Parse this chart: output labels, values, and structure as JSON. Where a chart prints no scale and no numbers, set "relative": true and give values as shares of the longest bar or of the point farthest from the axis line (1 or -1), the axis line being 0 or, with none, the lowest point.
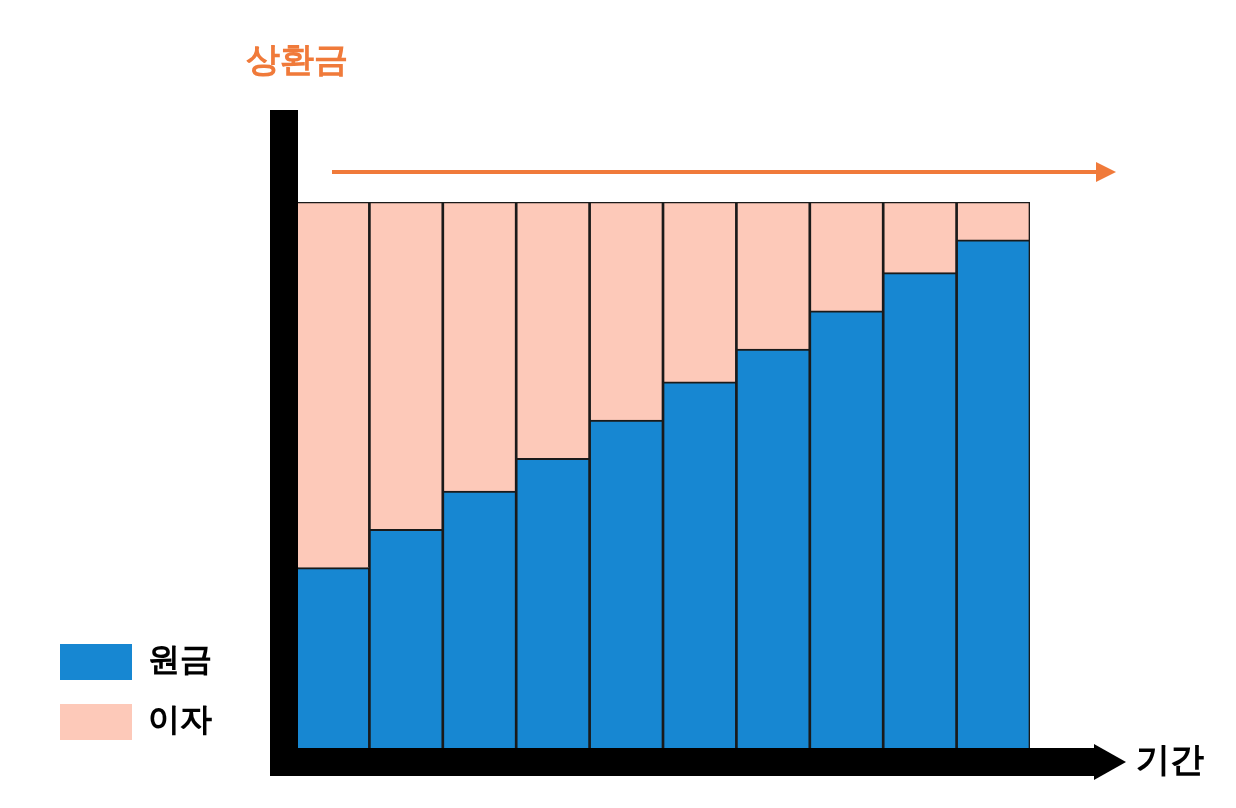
{
  "chart_data": {
    "type": "bar",
    "stacked": true,
    "relative": true,
    "ylabel": "상환금",
    "xlabel": "기간",
    "categories": [
      null,
      null,
      null,
      null,
      null,
      null,
      null,
      null,
      null,
      null
    ],
    "series": [
      {
        "name": "원금",
        "color": "#1787d2",
        "values": [
          0.33,
          0.4,
          0.47,
          0.53,
          0.6,
          0.67,
          0.73,
          0.8,
          0.87,
          0.93
        ]
      },
      {
        "name": "이자",
        "color": "#fdc9b9",
        "values": [
          0.67,
          0.6,
          0.53,
          0.47,
          0.4,
          0.33,
          0.27,
          0.2,
          0.13,
          0.07
        ]
      }
    ],
    "legend": "bottom left"
  }
}
